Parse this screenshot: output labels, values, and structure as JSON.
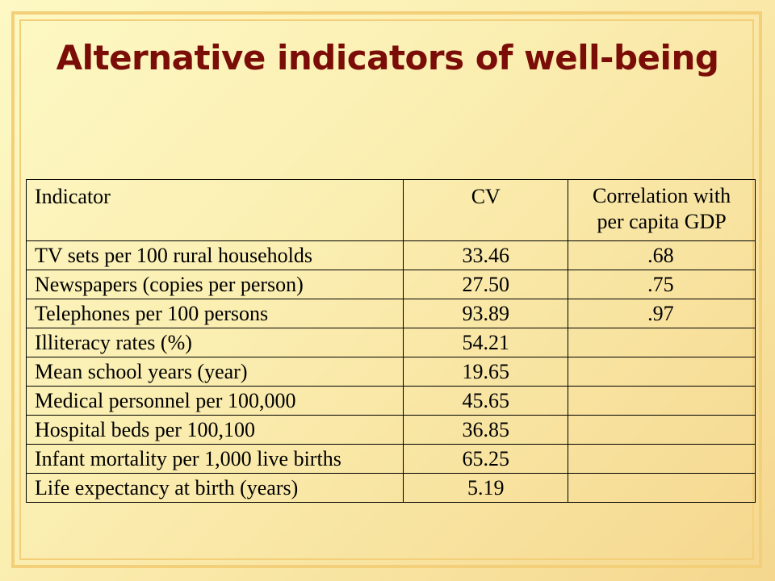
{
  "slide": {
    "title": "Alternative indicators of well-being"
  },
  "table": {
    "headers": {
      "indicator": "Indicator",
      "cv": "CV",
      "correlation_line1": "Correlation with",
      "correlation_line2": "per capita GDP"
    },
    "rows": [
      {
        "indicator": "TV sets per 100 rural households",
        "cv": "33.46",
        "corr": ".68"
      },
      {
        "indicator": "Newspapers (copies per person)",
        "cv": "27.50",
        "corr": ".75"
      },
      {
        "indicator": "Telephones per 100 persons",
        "cv": "93.89",
        "corr": ".97"
      },
      {
        "indicator": "Illiteracy rates (%)",
        "cv": "54.21",
        "corr": ""
      },
      {
        "indicator": "Mean school years (year)",
        "cv": "19.65",
        "corr": ""
      },
      {
        "indicator": "Medical personnel per 100,000",
        "cv": "45.65",
        "corr": ""
      },
      {
        "indicator": "Hospital beds per 100,100",
        "cv": "36.85",
        "corr": ""
      },
      {
        "indicator": "Infant mortality per 1,000 live births",
        "cv": "65.25",
        "corr": ""
      },
      {
        "indicator": "Life expectancy at birth (years)",
        "cv": "5.19",
        "corr": ""
      }
    ]
  }
}
